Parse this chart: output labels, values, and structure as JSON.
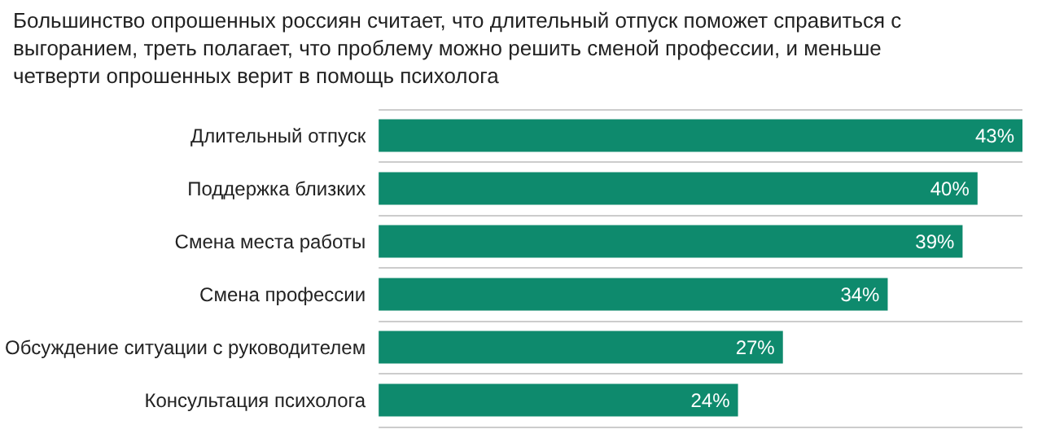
{
  "chart_data": {
    "type": "bar",
    "orientation": "horizontal",
    "title": "Большинство опрошенных россиян считает, что длительный отпуск поможет справиться с выгоранием, треть полагает, что проблему можно решить сменой профессии, и меньше четверти опрошенных верит в помощь психолога",
    "categories": [
      "Длительный отпуск",
      "Поддержка близких",
      "Смена места работы",
      "Смена профессии",
      "Обсуждение ситуации с руководителем",
      "Консультация психолога"
    ],
    "values": [
      43,
      40,
      39,
      34,
      27,
      24
    ],
    "value_labels": [
      "43%",
      "40%",
      "39%",
      "34%",
      "27%",
      "24%"
    ],
    "color": "#0e8a6d",
    "grid": "y"
  }
}
